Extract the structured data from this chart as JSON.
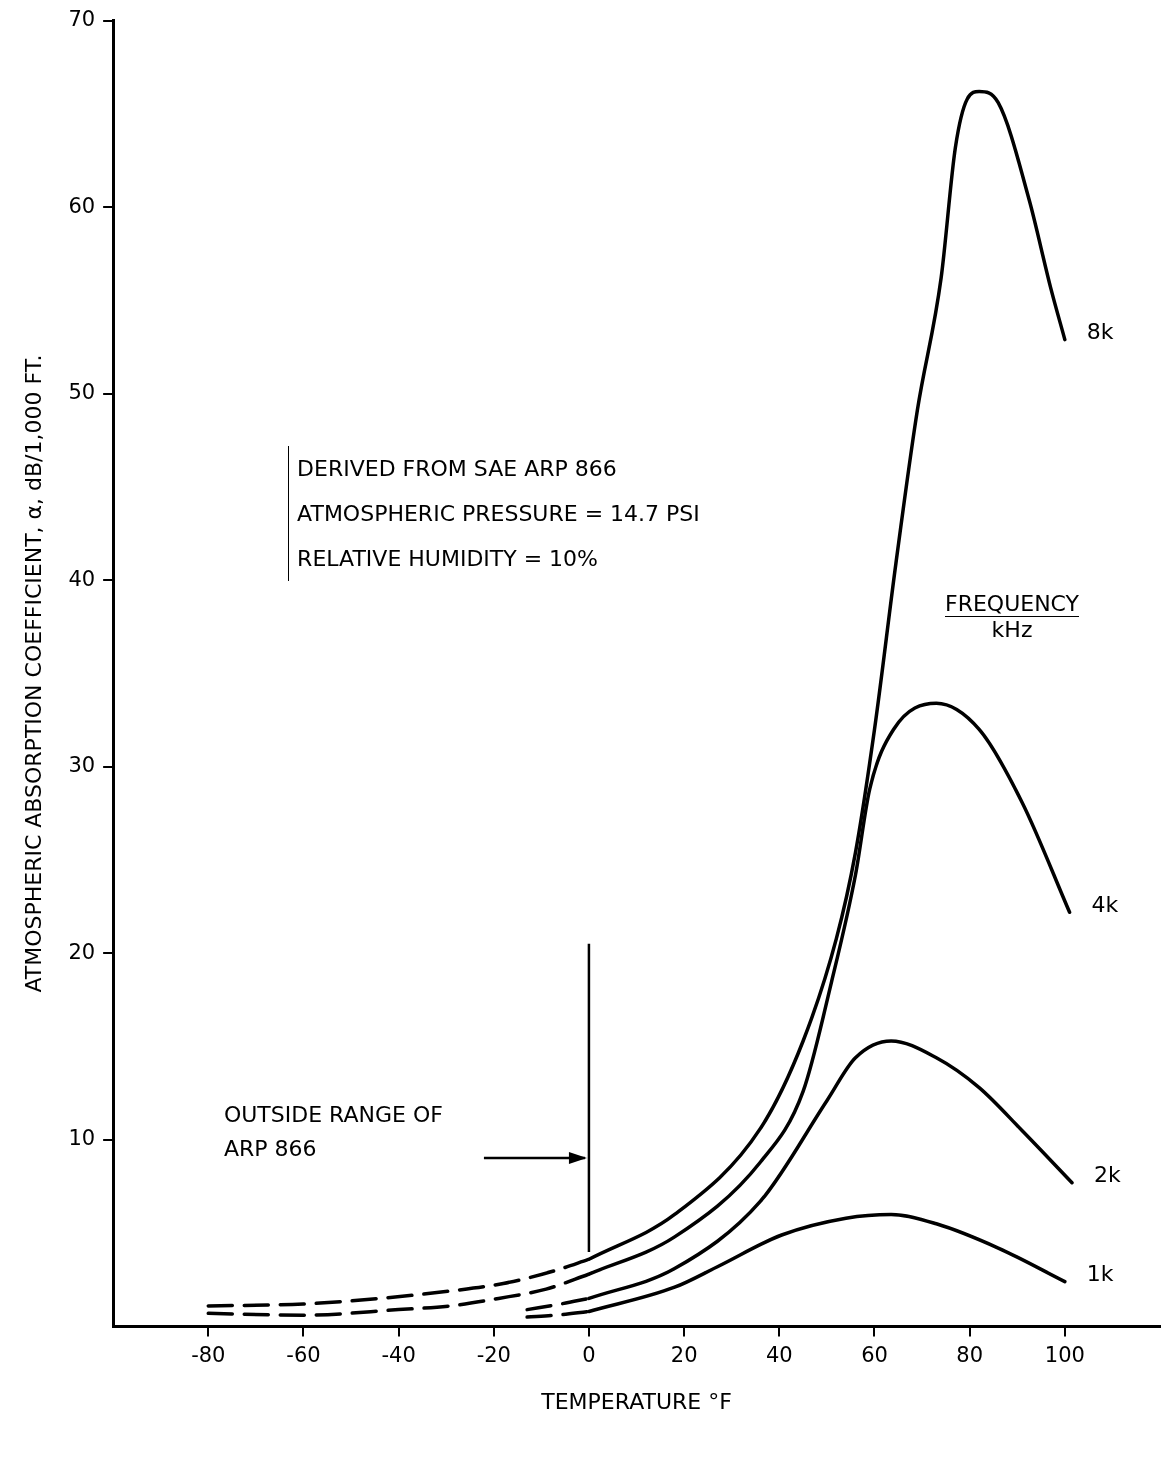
{
  "chart_data": {
    "type": "line",
    "xlabel": "TEMPERATURE °F",
    "ylabel": "ATMOSPHERIC ABSORPTION COEFFICIENT, α, dB/1,000 FT.",
    "legend_title": "FREQUENCY kHz",
    "xlim": [
      -100,
      120
    ],
    "xticks": [
      -80,
      -60,
      -40,
      -20,
      0,
      20,
      40,
      60,
      80,
      100
    ],
    "ylim": [
      0,
      70
    ],
    "yticks": [
      10,
      20,
      30,
      40,
      50,
      60,
      70
    ],
    "grid": false,
    "legend": false,
    "marker": "none",
    "series": [
      {
        "line_style": "dashed",
        "color": "#000000",
        "x": [
          -80,
          -60,
          -44,
          -29,
          -18,
          -7,
          0
        ],
        "values": [
          1.1,
          1.2,
          1.5,
          1.9,
          2.3,
          3.0,
          3.6
        ]
      },
      {
        "line_style": "dashed",
        "color": "#000000",
        "x": [
          -80,
          -60,
          -40,
          -29,
          -19,
          -9,
          0
        ],
        "values": [
          0.7,
          0.6,
          0.9,
          1.1,
          1.5,
          2.0,
          2.8
        ]
      },
      {
        "line_style": "dashed",
        "color": "#000000",
        "x": [
          -13,
          -6,
          0
        ],
        "values": [
          0.9,
          1.2,
          1.5
        ]
      },
      {
        "line_style": "dashed",
        "color": "#000000",
        "x": [
          -13,
          -7,
          0
        ],
        "values": [
          0.5,
          0.6,
          0.8
        ]
      },
      {
        "name": "8k",
        "line_style": "solid",
        "color": "#000000",
        "x": [
          0,
          18,
          36,
          45,
          52,
          56,
          60,
          64.5,
          69,
          74,
          77,
          79.5,
          82,
          86,
          92.5,
          97,
          100
        ],
        "values": [
          3.6,
          6.0,
          10.6,
          15.3,
          20.8,
          25.4,
          32,
          40.9,
          49.1,
          56.2,
          63.2,
          65.8,
          66.2,
          65.6,
          60.4,
          55.7,
          52.9
        ]
      },
      {
        "name": "4k",
        "line_style": "solid",
        "color": "#000000",
        "x": [
          0,
          18,
          36,
          45,
          51,
          56,
          59,
          64,
          73,
          82,
          91,
          101
        ],
        "values": [
          2.8,
          4.8,
          8.8,
          12.6,
          18.5,
          24.2,
          28.8,
          32.0,
          33.4,
          32.0,
          28.1,
          22.2
        ]
      },
      {
        "name": "2k",
        "line_style": "solid",
        "color": "#000000",
        "x": [
          0,
          18,
          36,
          50,
          56,
          63.5,
          73,
          82,
          91,
          101.5
        ],
        "values": [
          1.5,
          3.1,
          6.7,
          12.1,
          14.4,
          15.3,
          14.4,
          12.8,
          10.5,
          7.7
        ]
      },
      {
        "name": "1k",
        "line_style": "solid",
        "color": "#000000",
        "x": [
          0,
          18,
          27,
          40.5,
          54,
          63.5,
          73,
          86,
          100
        ],
        "values": [
          0.8,
          2.1,
          3.2,
          4.9,
          5.8,
          6.0,
          5.5,
          4.2,
          2.4
        ]
      }
    ],
    "annotations": [
      "DERIVED FROM SAE ARP 866",
      "ATMOSPHERIC PRESSURE = 14.7 PSI",
      "RELATIVE HUMIDITY = 10%",
      "OUTSIDE RANGE OF ARP 866"
    ]
  }
}
